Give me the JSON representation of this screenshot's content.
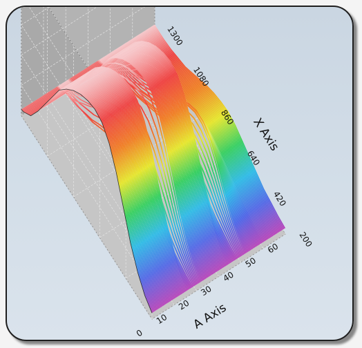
{
  "chart_data": {
    "type": "surface-3d",
    "title": "",
    "a_axis": {
      "label": "A Axis",
      "ticks": [
        "0",
        "10",
        "20",
        "30",
        "40",
        "50",
        "60"
      ],
      "range": [
        0,
        60
      ]
    },
    "x_axis": {
      "label": "X Axis",
      "ticks": [
        "200",
        "420",
        "640",
        "860",
        "1080",
        "1300"
      ],
      "range": [
        200,
        1300
      ]
    },
    "grid": true,
    "colormap": [
      "#b83fb8",
      "#4d64e6",
      "#27b9e6",
      "#2fce5a",
      "#e6e625",
      "#f07a1e",
      "#ee3e3e",
      "#f7c9cc"
    ],
    "profile_x": [
      200,
      260,
      320,
      380,
      440,
      500,
      560,
      620,
      680,
      740,
      800,
      860,
      920,
      980,
      1040,
      1100,
      1160,
      1220,
      1280,
      1300
    ],
    "profiles": [
      {
        "a": 0,
        "z": [
          0.05,
          0.1,
          0.2,
          0.35,
          0.55,
          0.75,
          0.9,
          0.98,
          1.0,
          0.98,
          0.94,
          0.88,
          0.8,
          0.7,
          0.55,
          0.4,
          0.25,
          0.12,
          0.06,
          0.05
        ]
      },
      {
        "a": 16,
        "z": [
          0.05,
          0.1,
          0.2,
          0.35,
          0.55,
          0.75,
          0.9,
          0.98,
          1.0,
          0.98,
          0.94,
          0.88,
          0.8,
          0.7,
          0.55,
          0.4,
          0.25,
          0.12,
          0.06,
          0.05
        ]
      },
      {
        "a": 18,
        "z": [
          0.05,
          0.06,
          0.08,
          0.1,
          0.14,
          0.18,
          0.22,
          0.26,
          0.28,
          0.27,
          0.25,
          0.22,
          0.18,
          0.14,
          0.1,
          0.08,
          0.06,
          0.05,
          0.05,
          0.05
        ]
      },
      {
        "a": 22,
        "z": [
          0.05,
          0.1,
          0.2,
          0.35,
          0.55,
          0.75,
          0.9,
          0.98,
          1.0,
          0.98,
          0.94,
          0.88,
          0.8,
          0.7,
          0.55,
          0.4,
          0.25,
          0.12,
          0.06,
          0.05
        ]
      },
      {
        "a": 34,
        "z": [
          0.05,
          0.1,
          0.2,
          0.35,
          0.55,
          0.75,
          0.9,
          0.98,
          1.0,
          0.98,
          0.94,
          0.88,
          0.8,
          0.7,
          0.55,
          0.4,
          0.25,
          0.12,
          0.06,
          0.05
        ]
      },
      {
        "a": 38,
        "z": [
          0.05,
          0.06,
          0.08,
          0.1,
          0.14,
          0.18,
          0.22,
          0.26,
          0.28,
          0.27,
          0.25,
          0.22,
          0.18,
          0.14,
          0.1,
          0.08,
          0.06,
          0.05,
          0.05,
          0.05
        ]
      },
      {
        "a": 42,
        "z": [
          0.05,
          0.1,
          0.18,
          0.3,
          0.44,
          0.55,
          0.6,
          0.6,
          0.56,
          0.5,
          0.44,
          0.38,
          0.32,
          0.26,
          0.2,
          0.15,
          0.1,
          0.07,
          0.05,
          0.05
        ]
      },
      {
        "a": 50,
        "z": [
          0.05,
          0.06,
          0.08,
          0.1,
          0.14,
          0.18,
          0.22,
          0.26,
          0.28,
          0.27,
          0.25,
          0.22,
          0.18,
          0.14,
          0.1,
          0.08,
          0.06,
          0.05,
          0.05,
          0.05
        ]
      },
      {
        "a": 60,
        "z": [
          0.05,
          0.06,
          0.08,
          0.1,
          0.14,
          0.18,
          0.22,
          0.26,
          0.28,
          0.27,
          0.25,
          0.22,
          0.18,
          0.14,
          0.1,
          0.08,
          0.06,
          0.05,
          0.05,
          0.05
        ]
      }
    ]
  }
}
